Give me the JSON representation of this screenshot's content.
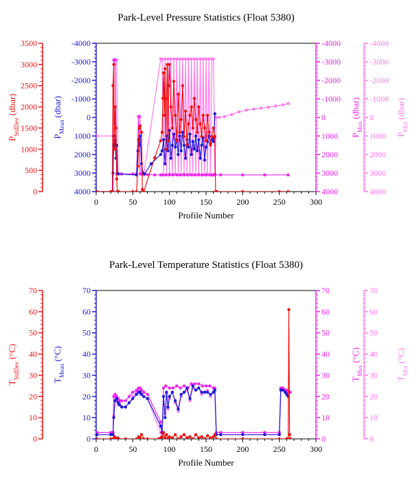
{
  "colors": {
    "stddev": "#ee1111",
    "mean": "#1a1ad4",
    "max": "#ee22ee",
    "min": "#ff77ee",
    "axis_black": "#000000"
  },
  "chart_data": [
    {
      "type": "line",
      "title": "Park-Level Pressure Statistics (Float 5380)",
      "xlabel": "Profile Number",
      "xlim": [
        0,
        300
      ],
      "xticks": [
        "0",
        "50",
        "100",
        "150",
        "200",
        "250",
        "300"
      ],
      "axes": {
        "stddev": {
          "label_main": "P",
          "label_sub": "StdDev",
          "label_unit": " (dbar)",
          "lim": [
            0,
            3500
          ],
          "ticks": [
            "0",
            "500",
            "1000",
            "1500",
            "2000",
            "2500",
            "3000",
            "3500"
          ]
        },
        "mean": {
          "label_main": "P",
          "label_sub": "Mean",
          "label_unit": " (dbar)",
          "lim": [
            4000,
            -4000
          ],
          "ticks": [
            "4000",
            "3000",
            "2000",
            "1000",
            "0",
            "-1000",
            "-2000",
            "-3000",
            "-4000"
          ]
        },
        "max": {
          "label_main": "P",
          "label_sub": "Max",
          "label_unit": " (dbar)",
          "lim": [
            4000,
            -4000
          ],
          "ticks": [
            "4000",
            "3000",
            "2000",
            "1000",
            "0",
            "-1000",
            "-2000",
            "-3000",
            "-4000"
          ]
        },
        "min": {
          "label_main": "P",
          "label_sub": "Min",
          "label_unit": " (dbar)",
          "lim": [
            4000,
            -4000
          ],
          "ticks": [
            "4000",
            "3000",
            "2000",
            "1000",
            "0",
            "-1000",
            "-2000",
            "-3000",
            "-4000"
          ]
        }
      },
      "series": [
        {
          "key": "min",
          "x": [
            1,
            23,
            24,
            26,
            28,
            30,
            33,
            55,
            58,
            60,
            62,
            65,
            88,
            90,
            92,
            94,
            96,
            98,
            100,
            102,
            104,
            106,
            108,
            110,
            112,
            114,
            116,
            118,
            120,
            122,
            124,
            126,
            128,
            130,
            132,
            134,
            136,
            138,
            140,
            142,
            144,
            146,
            148,
            150,
            152,
            154,
            156,
            158,
            160,
            162,
            164,
            168,
            175,
            185,
            195,
            205,
            215,
            225,
            235,
            245,
            255,
            262
          ],
          "y": [
            1000,
            1000,
            -3100,
            -3100,
            -3100,
            3050,
            3050,
            3100,
            -50,
            -50,
            3050,
            3100,
            -3150,
            -3150,
            3100,
            -3150,
            3100,
            -3150,
            3050,
            -3150,
            3100,
            -3150,
            3050,
            -3150,
            3100,
            -3150,
            3100,
            -3150,
            3050,
            -3150,
            3100,
            -3150,
            3050,
            -3150,
            3100,
            -3150,
            3100,
            -3150,
            3050,
            -3150,
            3100,
            -3150,
            3100,
            -3150,
            3050,
            -3150,
            3100,
            -3150,
            -3150,
            3050,
            0,
            0,
            -50,
            -150,
            -300,
            -400,
            -450,
            -500,
            -550,
            -620,
            -680,
            -750
          ]
        },
        {
          "key": "max",
          "x": [
            1,
            23,
            24,
            26,
            28,
            30,
            35,
            50,
            55,
            58,
            60,
            62,
            65,
            70,
            80,
            88,
            90,
            95,
            100,
            105,
            110,
            115,
            120,
            125,
            130,
            135,
            140,
            145,
            150,
            155,
            158,
            160,
            162,
            170,
            200,
            230,
            262
          ],
          "y": [
            4000,
            4000,
            -3100,
            -3100,
            3050,
            3050,
            3050,
            3050,
            3050,
            -50,
            3050,
            3050,
            3050,
            3080,
            3100,
            3100,
            3100,
            3100,
            3100,
            3100,
            3100,
            3100,
            3100,
            3100,
            3100,
            3100,
            3100,
            3100,
            3100,
            3100,
            3100,
            3100,
            3100,
            3100,
            3100,
            3100,
            3100
          ]
        },
        {
          "key": "mean",
          "x": [
            1,
            22,
            23,
            24,
            25,
            26,
            27,
            28,
            29,
            30,
            55,
            57,
            58,
            59,
            60,
            62,
            64,
            66,
            75,
            88,
            90,
            92,
            94,
            96,
            98,
            100,
            102,
            104,
            106,
            108,
            110,
            112,
            114,
            116,
            118,
            120,
            122,
            124,
            126,
            128,
            130,
            132,
            134,
            136,
            138,
            140,
            142,
            144,
            146,
            148,
            150,
            152,
            154,
            156,
            158,
            160,
            161,
            162
          ],
          "y": [
            4000,
            4000,
            3000,
            1500,
            1000,
            1200,
            2200,
            1500,
            3000,
            3050,
            3100,
            1800,
            1200,
            1500,
            1000,
            2500,
            3000,
            3050,
            2500,
            2000,
            1800,
            1200,
            2500,
            1000,
            1800,
            700,
            2200,
            1500,
            900,
            1600,
            1200,
            2000,
            1000,
            1800,
            800,
            1500,
            2200,
            1200,
            1600,
            900,
            2000,
            1300,
            1700,
            1000,
            1800,
            1200,
            2200,
            1500,
            1100,
            2300,
            1600,
            1300,
            1000,
            1400,
            1200,
            1300,
            1100,
            -200
          ]
        },
        {
          "key": "stddev",
          "x": [
            1,
            20,
            22,
            23,
            24,
            25,
            26,
            27,
            28,
            29,
            30,
            31,
            50,
            55,
            57,
            58,
            59,
            60,
            62,
            63,
            64,
            65,
            80,
            88,
            90,
            91,
            92,
            93,
            94,
            95,
            96,
            97,
            98,
            99,
            100,
            102,
            104,
            106,
            108,
            110,
            112,
            114,
            116,
            118,
            120,
            122,
            124,
            126,
            128,
            130,
            132,
            134,
            136,
            138,
            140,
            142,
            144,
            146,
            148,
            150,
            152,
            154,
            156,
            158,
            160,
            162,
            163,
            165,
            200,
            250,
            262
          ],
          "y": [
            0,
            0,
            0,
            2500,
            3000,
            1000,
            2000,
            1500,
            300,
            0,
            0,
            0,
            0,
            0,
            600,
            1200,
            1500,
            1550,
            1400,
            50,
            0,
            0,
            800,
            1200,
            1400,
            2200,
            2800,
            1800,
            2900,
            1000,
            2200,
            3000,
            1200,
            2500,
            3000,
            2000,
            1500,
            2600,
            1800,
            1200,
            2300,
            1400,
            1700,
            2500,
            1300,
            1900,
            1100,
            1600,
            1800,
            2000,
            1500,
            2200,
            1700,
            1400,
            2000,
            1600,
            1300,
            1800,
            1500,
            1200,
            1800,
            1400,
            1100,
            1300,
            1500,
            1300,
            0,
            0,
            0,
            0,
            0
          ]
        }
      ]
    },
    {
      "type": "line",
      "title": "Park-Level Temperature Statistics (Float 5380)",
      "xlabel": "Profile Number",
      "xlim": [
        0,
        300
      ],
      "xticks": [
        "0",
        "50",
        "100",
        "150",
        "200",
        "250",
        "300"
      ],
      "axes": {
        "stddev": {
          "label_main": "T",
          "label_sub": "StdDev",
          "label_unit": " (°C)",
          "lim": [
            0,
            70
          ],
          "ticks": [
            "0",
            "10",
            "20",
            "30",
            "40",
            "50",
            "60",
            "70"
          ]
        },
        "mean": {
          "label_main": "T",
          "label_sub": "Mean",
          "label_unit": " (°C)",
          "lim": [
            0,
            70
          ],
          "ticks": [
            "0",
            "10",
            "20",
            "30",
            "40",
            "50",
            "60",
            "70"
          ]
        },
        "max": {
          "label_main": "T",
          "label_sub": "Max",
          "label_unit": " (°C)",
          "lim": [
            0,
            70
          ],
          "ticks": [
            "0",
            "10",
            "20",
            "30",
            "40",
            "50",
            "60",
            "70"
          ]
        },
        "min": {
          "label_main": "T",
          "label_sub": "Min",
          "label_unit": " (°C)",
          "lim": [
            0,
            70
          ],
          "ticks": [
            "0",
            "10",
            "20",
            "30",
            "40",
            "50",
            "60",
            "70"
          ]
        }
      },
      "series": [
        {
          "key": "min",
          "x": [
            1,
            20,
            23,
            24,
            26,
            28,
            30,
            32,
            35,
            40,
            45,
            50,
            55,
            58,
            60,
            62,
            65,
            70,
            88,
            90,
            92,
            94,
            96,
            98,
            100,
            104,
            108,
            112,
            116,
            120,
            124,
            128,
            132,
            136,
            140,
            144,
            148,
            152,
            156,
            160,
            162,
            164,
            170,
            200,
            230,
            250,
            252,
            255,
            258,
            260,
            262
          ],
          "y": [
            3,
            3,
            3,
            11,
            20,
            18,
            16,
            17,
            15,
            15,
            17,
            20,
            22,
            23,
            21,
            21,
            20,
            19,
            3,
            2,
            20,
            12,
            21,
            14,
            19,
            22,
            17,
            13,
            20,
            22,
            23,
            18,
            24,
            23,
            24,
            21,
            22,
            23,
            20,
            22,
            23,
            2,
            2,
            2,
            2,
            2,
            23,
            23,
            22,
            21,
            20
          ]
        },
        {
          "key": "max",
          "x": [
            1,
            20,
            23,
            24,
            26,
            28,
            30,
            32,
            35,
            40,
            45,
            50,
            55,
            58,
            60,
            62,
            65,
            70,
            88,
            90,
            92,
            95,
            100,
            105,
            110,
            115,
            120,
            125,
            130,
            135,
            140,
            145,
            150,
            155,
            160,
            162,
            164,
            170,
            200,
            230,
            250,
            252,
            255,
            258,
            260,
            262,
            265
          ],
          "y": [
            3,
            3,
            3,
            20,
            21,
            20,
            19,
            18,
            18,
            18,
            20,
            22,
            23,
            24,
            24,
            23,
            22,
            21,
            8,
            3,
            24,
            25,
            24,
            24,
            25,
            24,
            25,
            24,
            26,
            26,
            26,
            25,
            25,
            25,
            24,
            24,
            3,
            3,
            3,
            3,
            3,
            24,
            24,
            23,
            23,
            22,
            22
          ]
        },
        {
          "key": "mean",
          "x": [
            1,
            20,
            23,
            24,
            26,
            28,
            30,
            32,
            35,
            40,
            45,
            50,
            55,
            58,
            60,
            62,
            65,
            70,
            88,
            90,
            92,
            94,
            96,
            98,
            100,
            104,
            108,
            112,
            116,
            120,
            124,
            128,
            132,
            136,
            140,
            144,
            148,
            152,
            156,
            160,
            162,
            164,
            170,
            200,
            230,
            250,
            252,
            255,
            258,
            260,
            262
          ],
          "y": [
            2,
            2,
            2,
            10,
            18,
            19,
            17,
            16,
            15,
            15,
            17,
            19,
            21,
            22,
            22,
            21,
            20,
            19,
            6,
            3,
            20,
            10,
            22,
            15,
            20,
            22,
            18,
            14,
            21,
            22,
            24,
            19,
            25,
            23,
            24,
            22,
            22,
            22,
            21,
            22,
            23,
            2,
            2,
            2,
            2,
            2,
            23,
            23,
            22,
            21,
            20
          ]
        },
        {
          "key": "stddev",
          "x": [
            1,
            20,
            23,
            25,
            27,
            29,
            31,
            40,
            55,
            58,
            60,
            62,
            65,
            70,
            85,
            88,
            90,
            92,
            94,
            96,
            98,
            100,
            104,
            108,
            112,
            116,
            120,
            124,
            128,
            132,
            136,
            140,
            144,
            148,
            152,
            156,
            160,
            162,
            164,
            200,
            250,
            260,
            262,
            263,
            264,
            265
          ],
          "y": [
            0,
            0,
            0,
            1,
            0,
            0.5,
            0,
            0,
            0,
            1,
            0.5,
            2,
            0,
            0,
            0,
            0.5,
            1,
            3,
            0.5,
            2,
            0,
            1,
            0.5,
            2,
            0,
            1,
            2,
            0.5,
            1,
            0,
            2,
            0.5,
            1,
            0,
            1.5,
            0.5,
            1,
            2,
            0,
            0,
            0,
            0,
            0,
            61,
            2,
            0
          ]
        }
      ]
    }
  ]
}
